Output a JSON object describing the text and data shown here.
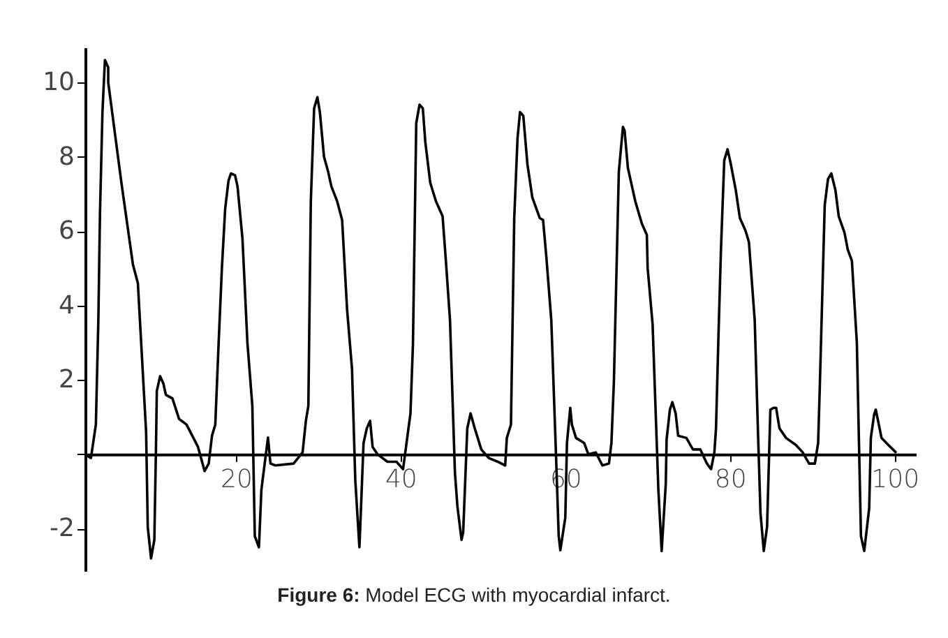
{
  "chart_data": {
    "type": "line",
    "x": [
      1.7,
      2.4,
      3.0,
      3.3,
      3.5,
      3.8,
      4.1,
      4.5,
      4.5,
      6.1,
      7.5,
      8.1,
      8.3,
      9.1,
      9.3,
      9.7,
      10.1,
      10.3,
      10.4,
      10.8,
      11.2,
      11.5,
      12.3,
      13.1,
      14.0,
      15.4,
      16.2,
      16.7,
      17.1,
      17.5,
      17.9,
      18.3,
      18.7,
      19.1,
      19.4,
      19.9,
      20.2,
      20.8,
      21.4,
      22.0,
      22.3,
      22.8,
      23.1,
      23.9,
      24.2,
      24.8,
      27.0,
      28.1,
      28.5,
      28.8,
      29.1,
      29.5,
      29.9,
      30.2,
      30.7,
      31.2,
      31.6,
      32.3,
      32.9,
      33.5,
      34.1,
      34.5,
      35.0,
      35.2,
      35.5,
      35.9,
      36.3,
      36.6,
      37.2,
      38.4,
      39.5,
      40.3,
      40.9,
      41.2,
      41.5,
      41.9,
      42.3,
      42.7,
      43.0,
      43.6,
      44.3,
      45.1,
      45.5,
      46.0,
      46.6,
      46.9,
      47.4,
      47.6,
      48.1,
      48.5,
      49.0,
      49.8,
      50.7,
      51.8,
      52.7,
      52.9,
      53.4,
      53.8,
      54.2,
      54.5,
      54.9,
      55.4,
      56.0,
      56.9,
      57.3,
      57.7,
      58.3,
      58.9,
      59.2,
      59.4,
      60.0,
      60.2,
      60.6,
      60.8,
      61.3,
      62.3,
      62.8,
      63.7,
      64.5,
      65.3,
      65.6,
      65.9,
      66.5,
      67.0,
      67.2,
      67.6,
      68.5,
      69.3,
      69.9,
      70.0,
      70.6,
      71.3,
      71.7,
      72.2,
      72.3,
      72.7,
      73.0,
      73.4,
      73.7,
      74.7,
      75.5,
      76.4,
      77.2,
      77.7,
      78.1,
      78.3,
      78.6,
      78.9,
      79.3,
      79.7,
      80.1,
      80.7,
      81.2,
      81.9,
      82.3,
      83.0,
      83.4,
      83.7,
      84.1,
      84.5,
      84.9,
      85.3,
      85.6,
      86.0,
      86.8,
      88.0,
      88.8,
      89.6,
      90.3,
      90.7,
      90.9,
      91.5,
      91.9,
      92.3,
      92.8,
      93.2,
      93.9,
      94.3,
      94.8,
      95.4,
      95.9,
      96.3,
      96.9,
      97.1,
      97.5,
      97.7,
      98.4,
      99.0,
      100.1
    ],
    "series": [
      {
        "color": "#000000",
        "values": [
          0,
          -0.1,
          0.8,
          3.6,
          6.5,
          9.2,
          10.6,
          10.4,
          10.0,
          7.3,
          5.1,
          4.6,
          3.8,
          0.6,
          -1.95,
          -2.8,
          -2.3,
          0.2,
          1.7,
          2.1,
          1.9,
          1.6,
          1.5,
          0.95,
          0.8,
          0.2,
          -0.45,
          -0.25,
          0.5,
          0.8,
          2.96,
          5.0,
          6.6,
          7.35,
          7.55,
          7.5,
          7.2,
          5.8,
          3.0,
          1.3,
          -2.2,
          -2.5,
          -0.95,
          0.45,
          -0.25,
          -0.3,
          -0.25,
          0.05,
          0.9,
          1.3,
          6.8,
          9.3,
          9.6,
          9.2,
          8.0,
          7.6,
          7.2,
          6.8,
          6.3,
          3.9,
          2.3,
          -0.7,
          -2.5,
          -1.4,
          0.3,
          0.7,
          0.9,
          0.2,
          0.0,
          -0.2,
          -0.2,
          -0.4,
          0.6,
          1.1,
          2.96,
          8.9,
          9.4,
          9.3,
          8.4,
          7.3,
          6.8,
          6.4,
          5.2,
          3.6,
          -0.5,
          -1.4,
          -2.3,
          -2.1,
          0.7,
          1.1,
          0.7,
          0.13,
          -0.1,
          -0.2,
          -0.3,
          0.44,
          0.8,
          6.35,
          8.5,
          9.2,
          9.1,
          7.8,
          6.9,
          6.35,
          6.3,
          5.3,
          3.6,
          -0.2,
          -2.2,
          -2.58,
          -1.7,
          0.3,
          1.25,
          0.8,
          0.44,
          0.3,
          0.0,
          0.05,
          -0.3,
          -0.25,
          0.3,
          1.95,
          7.6,
          8.8,
          8.7,
          7.7,
          6.8,
          6.2,
          5.9,
          5.0,
          3.5,
          -0.95,
          -2.6,
          -0.8,
          0.4,
          1.2,
          1.4,
          1.1,
          0.5,
          0.44,
          0.13,
          0.13,
          -0.25,
          -0.4,
          0.05,
          0.7,
          3.2,
          5.5,
          7.9,
          8.2,
          7.8,
          7.1,
          6.35,
          6.0,
          5.7,
          3.6,
          0.57,
          -1.58,
          -2.6,
          -1.95,
          1.2,
          1.25,
          1.25,
          0.7,
          0.44,
          0.25,
          0.06,
          -0.25,
          -0.25,
          0.3,
          1.8,
          6.7,
          7.4,
          7.55,
          7.1,
          6.4,
          5.96,
          5.5,
          5.2,
          3.0,
          -2.2,
          -2.6,
          -1.45,
          0.44,
          1.07,
          1.2,
          0.44,
          0.3,
          0.06
        ]
      }
    ],
    "xlim": [
      1.7,
      102.4
    ],
    "ylim": [
      -3.1,
      10.9
    ],
    "xticks": [
      20,
      40,
      60,
      80,
      100
    ],
    "yticks": [
      -2,
      {
        "value": 0,
        "label": null
      },
      2,
      4,
      6,
      8,
      10
    ],
    "grid": false,
    "marker": "none",
    "line_style": "solid",
    "annotations": [
      "Figure 6: Model ECG with myocardial infarct."
    ]
  }
}
